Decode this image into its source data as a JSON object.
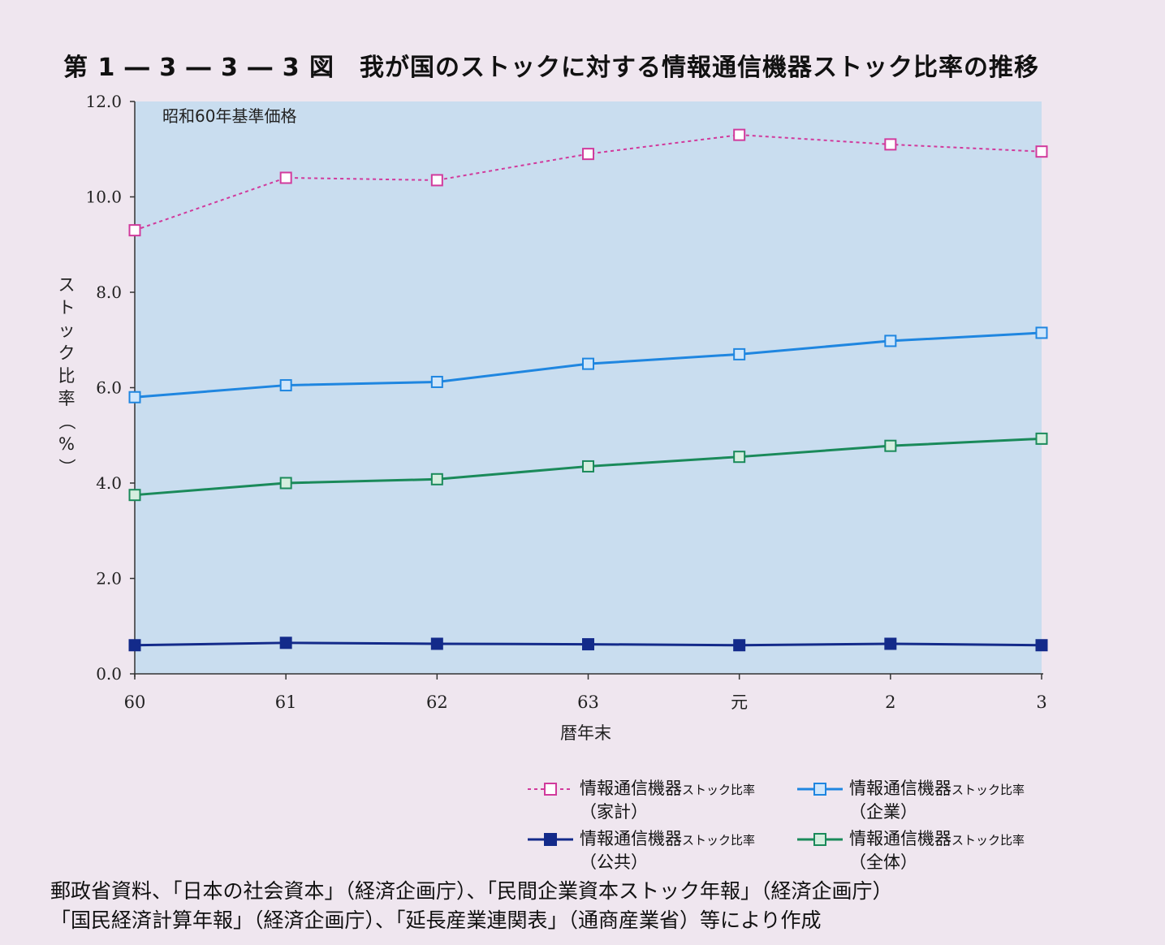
{
  "figure": {
    "title": "第 1 ― 3 ― 3 ― 3 図　我が国のストックに対する情報通信機器ストック比率の推移"
  },
  "chart_data": {
    "type": "line",
    "title": "第 1 ― 3 ― 3 ― 3 図　我が国のストックに対する情報通信機器ストック比率の推移",
    "annotation": "昭和60年基準価格",
    "xlabel": "暦年末",
    "ylabel": "ストック比率（%）",
    "ylim": [
      0,
      12
    ],
    "yticks": [
      "0.0",
      "2.0",
      "4.0",
      "6.0",
      "8.0",
      "10.0",
      "12.0"
    ],
    "categories": [
      "60",
      "61",
      "62",
      "63",
      "元",
      "2",
      "3"
    ],
    "series": [
      {
        "name": "情報通信機器ストック比率（家計）",
        "color": "#d13a9c",
        "style": "dashed",
        "values": [
          9.3,
          10.4,
          10.35,
          10.9,
          11.3,
          11.1,
          10.95
        ]
      },
      {
        "name": "情報通信機器ストック比率（企業）",
        "color": "#1f86e0",
        "style": "solid",
        "values": [
          5.8,
          6.05,
          6.12,
          6.5,
          6.7,
          6.98,
          7.15
        ]
      },
      {
        "name": "情報通信機器ストック比率（公共）",
        "color": "#132a8a",
        "style": "solid",
        "values": [
          0.6,
          0.65,
          0.63,
          0.62,
          0.6,
          0.63,
          0.6
        ]
      },
      {
        "name": "情報通信機器ストック比率（全体）",
        "color": "#1a8a5a",
        "style": "solid",
        "values": [
          3.75,
          4.0,
          4.08,
          4.35,
          4.55,
          4.78,
          4.93
        ]
      }
    ],
    "grid": false,
    "legend_position": "bottom-right"
  },
  "legend": [
    {
      "main": "情報通信機器",
      "small": "ストック比率",
      "sub": "（家計）",
      "color": "#d13a9c",
      "style": "dashed"
    },
    {
      "main": "情報通信機器",
      "small": "ストック比率",
      "sub": "（企業）",
      "color": "#1f86e0",
      "style": "solid"
    },
    {
      "main": "情報通信機器",
      "small": "ストック比率",
      "sub": "（公共）",
      "color": "#132a8a",
      "style": "solid"
    },
    {
      "main": "情報通信機器",
      "small": "ストック比率",
      "sub": "（全体）",
      "color": "#1a8a5a",
      "style": "solid"
    }
  ],
  "source": {
    "line1": "郵政省資料、「日本の社会資本」（経済企画庁）、「民間企業資本ストック年報」（経済企画庁）",
    "line2": "「国民経済計算年報」（経済企画庁）、「延長産業連関表」（通商産業省）等により作成"
  }
}
